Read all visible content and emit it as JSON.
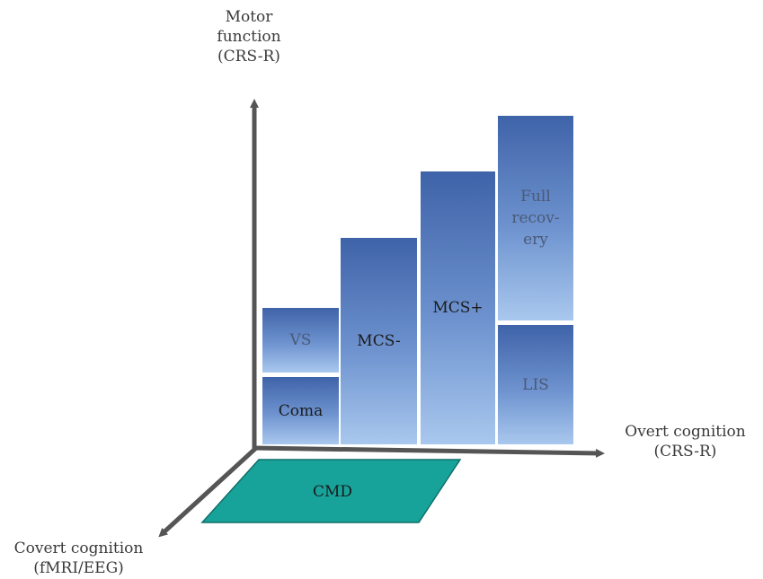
{
  "axes": {
    "motor": "Motor\nfunction\n(CRS-R)",
    "overt": "Overt cognition\n(CRS-R)",
    "covert": "Covert cognition\n(fMRI/EEG)"
  },
  "blocks": {
    "coma": "Coma",
    "vs": "VS",
    "mcs_minus": "MCS-",
    "mcs_plus": "MCS+",
    "full_recovery": "Full\nrecov-\nery",
    "lis": "LIS"
  },
  "plane": {
    "cmd": "CMD",
    "color": "#17a39a"
  },
  "colors": {
    "axis": "#555555",
    "block_top": "#3f63a8",
    "block_bottom": "#a9c8ee"
  }
}
